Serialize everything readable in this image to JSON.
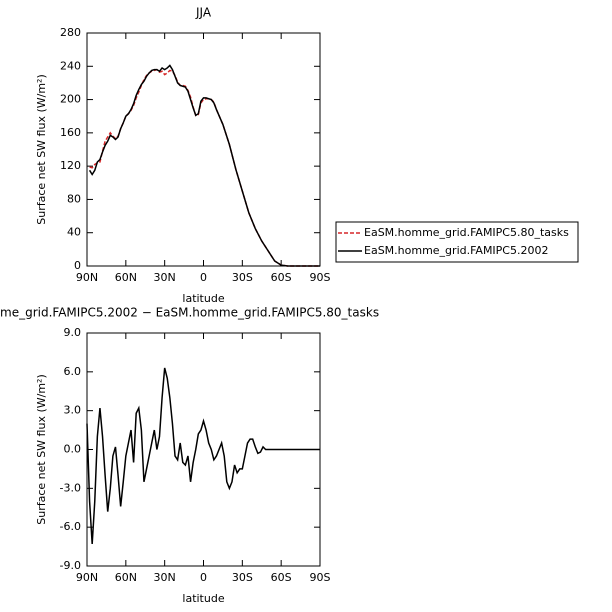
{
  "chart_data": [
    {
      "type": "line",
      "title": "JJA",
      "x_label": "latitude",
      "y_label": "Surface net SW flux (W/m²)",
      "x": [
        88,
        86,
        84,
        82,
        80,
        78,
        76,
        74,
        72,
        70,
        68,
        66,
        64,
        62,
        60,
        58,
        56,
        54,
        52,
        50,
        48,
        46,
        44,
        42,
        40,
        38,
        36,
        34,
        32,
        30,
        28,
        26,
        24,
        22,
        20,
        18,
        16,
        14,
        12,
        10,
        8,
        6,
        4,
        2,
        0,
        -2,
        -4,
        -6,
        -8,
        -10,
        -15,
        -20,
        -25,
        -30,
        -35,
        -40,
        -45,
        -50,
        -55,
        -60,
        -65,
        -70,
        -80,
        -90
      ],
      "series": [
        {
          "name": "EaSM.homme_grid.FAMIPC5.80_tasks",
          "color": "#d62728",
          "dash": true,
          "values": [
            119,
            118,
            122,
            124,
            125,
            138,
            150,
            155,
            160,
            156,
            153,
            156,
            165,
            172,
            180,
            183,
            187,
            193,
            202,
            209,
            217,
            224,
            229,
            232,
            234,
            235,
            236,
            233,
            234,
            230,
            232,
            235,
            234,
            229,
            221,
            217,
            217,
            216,
            211,
            203,
            191,
            181,
            182,
            196,
            200,
            201,
            201,
            200,
            197,
            188,
            170,
            146,
            116,
            90,
            64,
            45,
            30,
            18,
            6,
            1,
            0,
            0,
            0,
            0
          ]
        },
        {
          "name": "EaSM.homme_grid.FAMIPC5.2002",
          "color": "#000000",
          "dash": false,
          "values": [
            115,
            110,
            115,
            125,
            128,
            137,
            145,
            150,
            157,
            155,
            152,
            155,
            165,
            172,
            180,
            183,
            188,
            195,
            205,
            212,
            218,
            222,
            228,
            232,
            235,
            236,
            236,
            234,
            238,
            236,
            238,
            241,
            236,
            228,
            220,
            217,
            216,
            215,
            210,
            200,
            190,
            181,
            183,
            198,
            202,
            202,
            201,
            200,
            196,
            188,
            170,
            146,
            116,
            90,
            64,
            45,
            30,
            18,
            6,
            1,
            0,
            0,
            0,
            0
          ]
        }
      ],
      "xlim": [
        90,
        -90
      ],
      "xticks": [
        {
          "value": 90,
          "label": "90N"
        },
        {
          "value": 60,
          "label": "60N"
        },
        {
          "value": 30,
          "label": "30N"
        },
        0,
        {
          "value": -30,
          "label": "30S"
        },
        {
          "value": -60,
          "label": "60S"
        },
        {
          "value": -90,
          "label": "90S"
        }
      ],
      "ylim": [
        0,
        280
      ],
      "yticks": [
        0,
        40,
        80,
        120,
        160,
        200,
        240,
        280
      ],
      "legend": "right"
    },
    {
      "type": "line",
      "title": "me_grid.FAMIPC5.2002 − EaSM.homme_grid.FAMIPC5.80_tasks",
      "x_label": "latitude",
      "y_label": "Surface net SW flux (W/m²)",
      "x": [
        90,
        88,
        86,
        84,
        82,
        80,
        78,
        76,
        74,
        72,
        70,
        68,
        66,
        64,
        62,
        60,
        58,
        56,
        54,
        52,
        50,
        48,
        46,
        44,
        42,
        40,
        38,
        36,
        34,
        32,
        30,
        28,
        26,
        24,
        22,
        20,
        18,
        16,
        14,
        12,
        10,
        8,
        6,
        4,
        2,
        0,
        -2,
        -4,
        -6,
        -8,
        -10,
        -12,
        -14,
        -16,
        -18,
        -20,
        -22,
        -24,
        -26,
        -28,
        -30,
        -32,
        -34,
        -36,
        -38,
        -40,
        -42,
        -44,
        -46,
        -48,
        -50,
        -60,
        -70,
        -80,
        -90
      ],
      "series": [
        {
          "color": "#000000",
          "dash": false,
          "values": [
            2,
            -4,
            -7.3,
            -4,
            1,
            3.2,
            1,
            -2,
            -4.8,
            -3,
            -0.5,
            0.2,
            -2,
            -4.4,
            -2.5,
            -0.5,
            0.5,
            1.5,
            -1,
            2.8,
            3.2,
            1.5,
            -2.5,
            -1.5,
            -0.5,
            0.5,
            1.5,
            0,
            1,
            4,
            6.3,
            5.5,
            4,
            2,
            -0.5,
            -0.8,
            0.5,
            -1,
            -1.2,
            -0.5,
            -2.5,
            -1,
            0,
            1.2,
            1.5,
            2.2,
            1.5,
            0.5,
            0,
            -0.8,
            -0.5,
            0,
            0.5,
            -0.5,
            -2.5,
            -3,
            -2.5,
            -1.2,
            -1.8,
            -1.5,
            -1.5,
            -0.5,
            0.5,
            0.8,
            0.8,
            0.2,
            -0.3,
            -0.2,
            0.2,
            0,
            0,
            0,
            0,
            0,
            0
          ]
        }
      ],
      "xlim": [
        90,
        -90
      ],
      "xticks": [
        {
          "value": 90,
          "label": "90N"
        },
        {
          "value": 60,
          "label": "60N"
        },
        {
          "value": 30,
          "label": "30N"
        },
        0,
        {
          "value": -30,
          "label": "30S"
        },
        {
          "value": -60,
          "label": "60S"
        },
        {
          "value": -90,
          "label": "90S"
        }
      ],
      "ylim": [
        -9,
        9
      ],
      "yticks": [
        {
          "value": -9,
          "label": "-9.0"
        },
        {
          "value": -6,
          "label": "-6.0"
        },
        {
          "value": -3,
          "label": "-3.0"
        },
        {
          "value": 0,
          "label": "0.0"
        },
        {
          "value": 3,
          "label": "3.0"
        },
        {
          "value": 6,
          "label": "6.0"
        },
        {
          "value": 9,
          "label": "9.0"
        }
      ]
    }
  ]
}
